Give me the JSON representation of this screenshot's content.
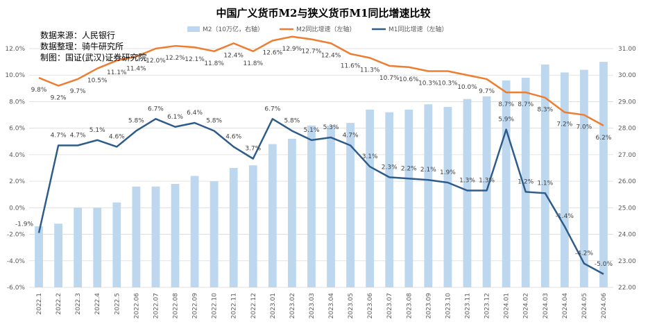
{
  "chart_data": {
    "type": "bar+line",
    "title": "中国广义货币M2与狭义货币M1同比增速比较",
    "notes": [
      "数据来源：人民银行",
      "数据整理：骑牛研究所",
      "制图：国证(武汉)证券研究院"
    ],
    "legend": {
      "position": "top",
      "items": [
        "M2（10万亿，右轴）",
        "M2同比增速（左轴）",
        "M1同比增速（左轴）"
      ]
    },
    "categories": [
      "2022.1",
      "2022.2",
      "2022.3",
      "2022.4",
      "2022.5",
      "2022.06",
      "2022.07",
      "2022.08",
      "2022.09",
      "2022.10",
      "2022.11",
      "2022.12",
      "2023.01",
      "2023.02",
      "2023.03",
      "2023.04",
      "2023.05",
      "2023.06",
      "2023.07",
      "2023.08",
      "2023.09",
      "2023.10",
      "2023.11",
      "2023.12",
      "2024.01",
      "2024.02",
      "2024.03",
      "2024.04",
      "2024.05",
      "2024.06"
    ],
    "left_axis": {
      "min": -6,
      "max": 12,
      "step": 2,
      "ticks": [
        "-6.0%",
        "-4.0%",
        "-2.0%",
        "0.0%",
        "2.0%",
        "4.0%",
        "6.0%",
        "8.0%",
        "10.0%",
        "12.0%"
      ]
    },
    "right_axis": {
      "min": 22,
      "max": 31,
      "step": 1,
      "ticks": [
        "22.00",
        "23.00",
        "24.00",
        "25.00",
        "26.00",
        "27.00",
        "28.00",
        "29.00",
        "30.00",
        "31.00"
      ]
    },
    "series": [
      {
        "name": "M2（10万亿，右轴）",
        "type": "bar",
        "axis": "right",
        "color": "#bdd7ee",
        "values": [
          24.3,
          24.4,
          25.0,
          25.0,
          25.2,
          25.8,
          25.8,
          25.9,
          26.2,
          26.0,
          26.5,
          26.6,
          27.4,
          27.6,
          28.1,
          28.1,
          28.2,
          28.7,
          28.6,
          28.7,
          28.9,
          28.8,
          29.1,
          29.2,
          29.8,
          29.9,
          30.4,
          30.1,
          30.2,
          30.5
        ]
      },
      {
        "name": "M2同比增速（左轴）",
        "type": "line",
        "axis": "left",
        "color": "#ed7d31",
        "values": [
          9.8,
          9.2,
          9.7,
          10.5,
          11.1,
          11.4,
          12.0,
          12.2,
          12.1,
          11.8,
          12.4,
          11.8,
          12.6,
          12.9,
          12.7,
          12.4,
          11.6,
          11.3,
          10.7,
          10.6,
          10.3,
          10.3,
          10.0,
          9.7,
          8.7,
          8.7,
          8.3,
          7.2,
          7.0,
          6.2
        ],
        "labels": [
          "9.8%",
          "9.2%",
          "9.7%",
          "10.5%",
          "11.1%",
          "11.4%",
          "12.0%",
          "12.2%",
          "12.1%",
          "11.8%",
          "12.4%",
          "11.8%",
          "12.6%",
          "12.9%",
          "12.7%",
          "12.4%",
          "11.6%",
          "11.3%",
          "10.7%",
          "10.6%",
          "10.3%",
          "10.3%",
          "10.0%",
          "9.7%",
          "8.7%",
          "8.7%",
          "8.3%",
          "7.2%",
          "7.0%",
          "6.2%"
        ]
      },
      {
        "name": "M1同比增速（左轴）",
        "type": "line",
        "axis": "left",
        "color": "#2e5c8a",
        "values": [
          -1.9,
          4.7,
          4.7,
          5.1,
          4.6,
          5.8,
          6.7,
          6.1,
          6.4,
          5.8,
          4.6,
          3.7,
          6.7,
          5.8,
          5.1,
          5.3,
          4.7,
          3.1,
          2.3,
          2.2,
          2.1,
          1.9,
          1.3,
          1.3,
          5.9,
          1.2,
          1.1,
          -1.4,
          -4.2,
          -5.0
        ],
        "labels": [
          "-1.9%",
          "4.7%",
          "4.7%",
          "5.1%",
          "4.6%",
          "5.8%",
          "6.7%",
          "6.1%",
          "6.4%",
          "5.8%",
          "4.6%",
          "3.7%",
          "6.7%",
          "5.8%",
          "5.1%",
          "5.3%",
          "4.7%",
          "3.1%",
          "2.3%",
          "2.2%",
          "2.1%",
          "1.9%",
          "1.3%",
          "1.3%",
          "5.9%",
          "1.2%",
          "1.1%",
          "-1.4%",
          "-4.2%",
          "-5.0%"
        ]
      }
    ]
  }
}
